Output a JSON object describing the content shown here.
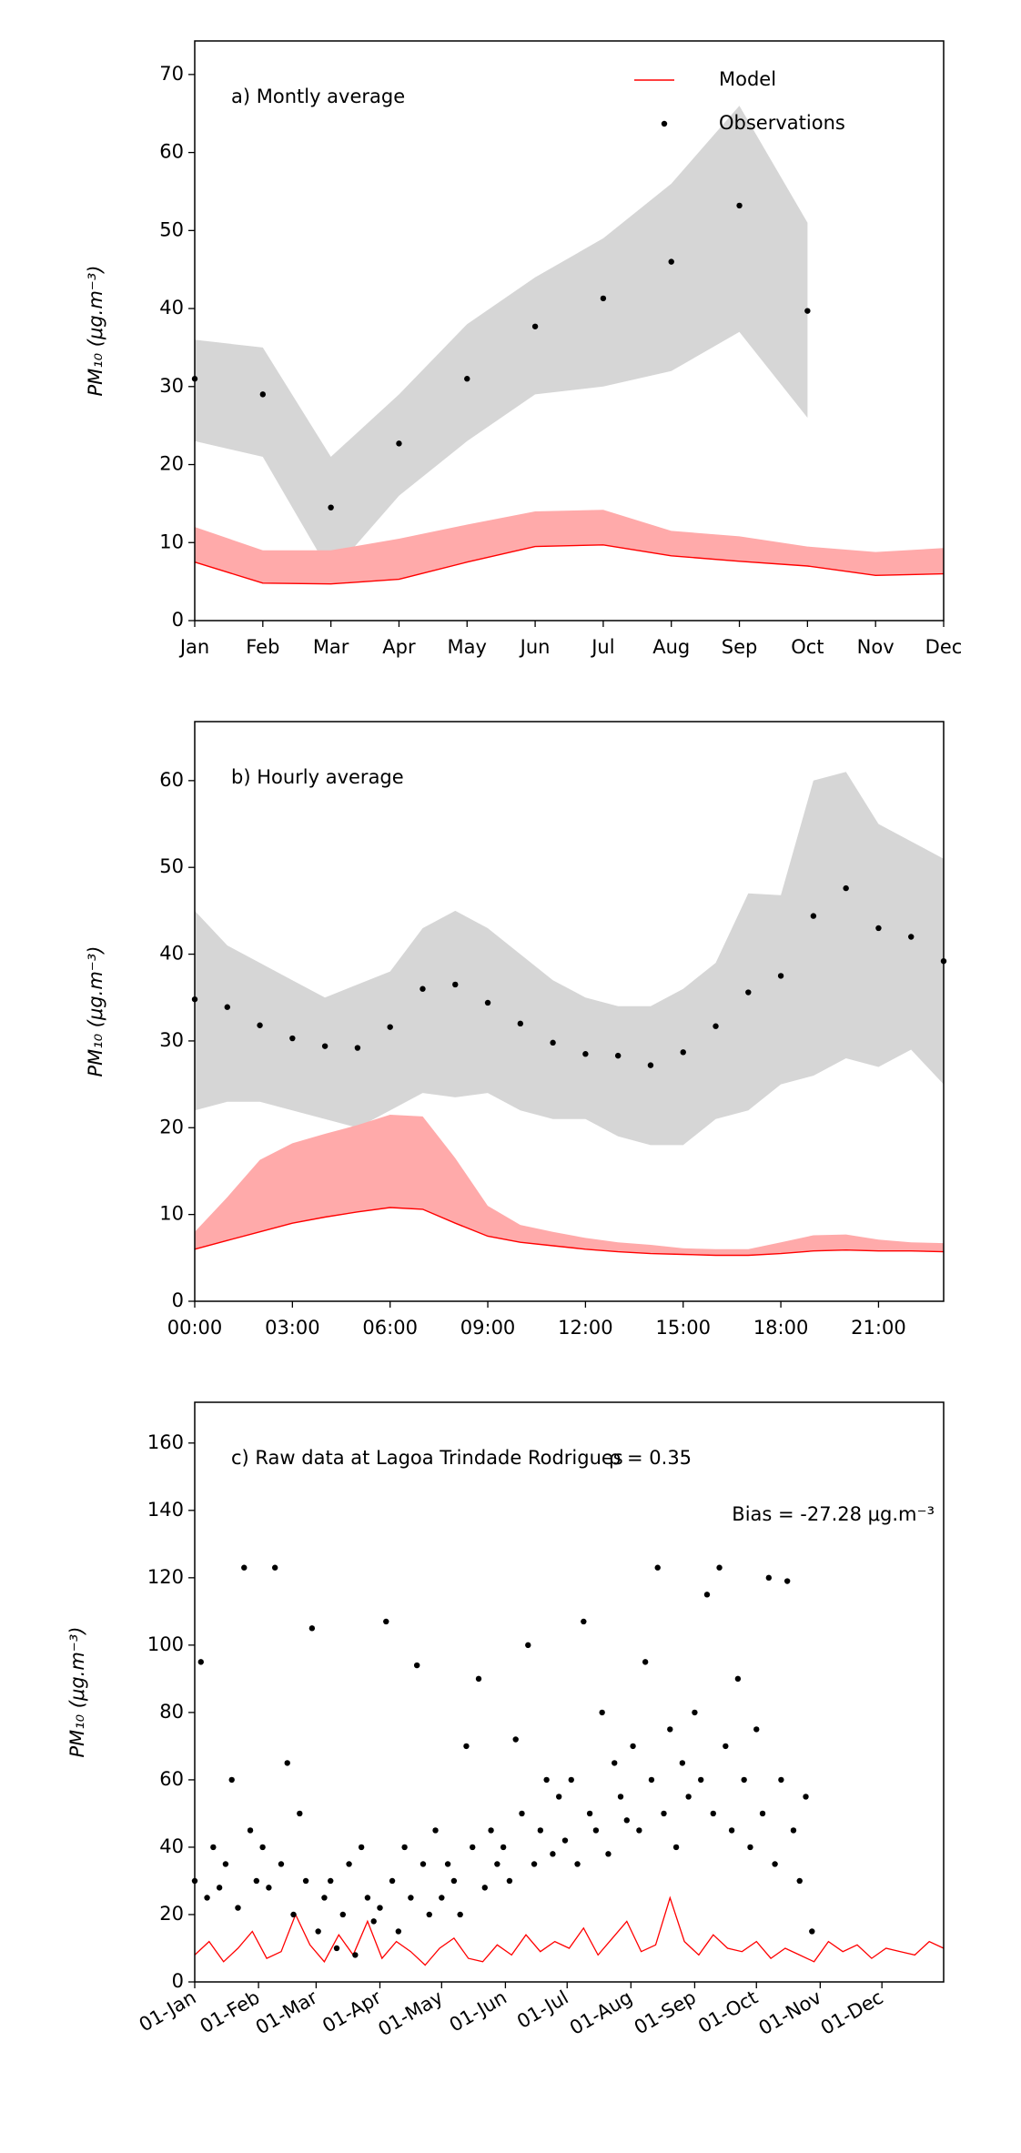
{
  "chart_data": [
    {
      "type": "line",
      "annotation": "a) Montly average",
      "ylabel": "PM₁₀ (μg.m⁻³)",
      "categories": [
        "Jan",
        "Feb",
        "Mar",
        "Apr",
        "May",
        "Jun",
        "Jul",
        "Aug",
        "Sep",
        "Oct",
        "Nov",
        "Dec"
      ],
      "ylim": [
        0,
        74.3
      ],
      "yticks": [
        0,
        10,
        20,
        30,
        40,
        50,
        60,
        70
      ],
      "legend": "upper right",
      "bands": [
        {
          "color": "#d6d6d6",
          "lower": [
            23,
            21,
            6,
            16,
            23,
            29,
            30,
            32,
            37,
            26,
            null,
            null
          ],
          "upper": [
            36,
            35,
            21,
            29,
            38,
            44,
            49,
            56,
            66,
            51,
            null,
            null
          ]
        },
        {
          "color": "#ffaaaa",
          "lower": [
            7.5,
            4.8,
            4.7,
            5.3,
            7.5,
            9.5,
            9.7,
            8.3,
            7.6,
            7.0,
            5.8,
            6.0
          ],
          "upper": [
            12,
            9,
            9,
            10.5,
            12.3,
            14,
            14.2,
            11.5,
            10.8,
            9.5,
            8.8,
            9.3
          ]
        }
      ],
      "series": [
        {
          "name": "Model",
          "style": "line",
          "color": "#ff0000",
          "values": [
            7.5,
            4.8,
            4.7,
            5.3,
            7.5,
            9.5,
            9.7,
            8.3,
            7.6,
            7.0,
            5.8,
            6.0
          ]
        },
        {
          "name": "Observations",
          "style": "markers",
          "color": "#000000",
          "values": [
            31,
            29,
            14.5,
            22.7,
            31,
            37.7,
            41.3,
            46,
            53.2,
            39.7,
            null,
            null
          ]
        }
      ]
    },
    {
      "type": "line",
      "annotation": "b) Hourly average",
      "ylabel": "PM₁₀ (μg.m⁻³)",
      "x": [
        0,
        1,
        2,
        3,
        4,
        5,
        6,
        7,
        8,
        9,
        10,
        11,
        12,
        13,
        14,
        15,
        16,
        17,
        18,
        19,
        20,
        21,
        22,
        23
      ],
      "xlim": [
        0,
        23
      ],
      "xticks": [
        {
          "value": 0,
          "label": "00:00"
        },
        {
          "value": 3,
          "label": "03:00"
        },
        {
          "value": 6,
          "label": "06:00"
        },
        {
          "value": 9,
          "label": "09:00"
        },
        {
          "value": 12,
          "label": "12:00"
        },
        {
          "value": 15,
          "label": "15:00"
        },
        {
          "value": 18,
          "label": "18:00"
        },
        {
          "value": 21,
          "label": "21:00"
        }
      ],
      "ylim": [
        0,
        66.8
      ],
      "yticks": [
        0,
        10,
        20,
        30,
        40,
        50,
        60
      ],
      "bands": [
        {
          "color": "#d6d6d6",
          "lower": [
            22,
            23,
            23,
            22,
            21,
            20,
            22,
            24,
            23.5,
            24,
            22,
            21,
            21,
            19,
            18,
            18,
            21,
            22,
            25,
            26,
            28,
            27,
            29,
            25
          ],
          "upper": [
            45,
            41,
            39,
            37,
            35,
            36.5,
            38,
            43,
            45,
            43,
            40,
            37,
            35,
            34,
            34,
            36,
            39,
            47,
            46.8,
            60,
            61,
            55,
            53,
            51
          ]
        },
        {
          "color": "#ffaaaa",
          "lower": [
            6.0,
            7.0,
            8.0,
            9.0,
            9.7,
            10.3,
            10.8,
            10.6,
            9.0,
            7.5,
            6.8,
            6.4,
            6.0,
            5.7,
            5.5,
            5.4,
            5.3,
            5.3,
            5.5,
            5.8,
            5.9,
            5.8,
            5.8,
            5.7
          ],
          "upper": [
            8,
            12,
            16.3,
            18.2,
            19.3,
            20.3,
            21.5,
            21.3,
            16.5,
            11,
            8.8,
            8,
            7.3,
            6.8,
            6.5,
            6.1,
            6,
            6,
            6.8,
            7.6,
            7.7,
            7.1,
            6.8,
            6.7
          ]
        }
      ],
      "series": [
        {
          "style": "line",
          "color": "#ff0000",
          "values": [
            6.0,
            7.0,
            8.0,
            9.0,
            9.7,
            10.3,
            10.8,
            10.6,
            9.0,
            7.5,
            6.8,
            6.4,
            6.0,
            5.7,
            5.5,
            5.4,
            5.3,
            5.3,
            5.5,
            5.8,
            5.9,
            5.8,
            5.8,
            5.7
          ]
        },
        {
          "style": "markers",
          "color": "#000000",
          "values": [
            34.8,
            33.9,
            31.8,
            30.3,
            29.4,
            29.2,
            31.6,
            36,
            36.5,
            34.4,
            32,
            29.8,
            28.5,
            28.3,
            27.2,
            28.7,
            31.7,
            35.6,
            37.5,
            44.4,
            47.6,
            43,
            42,
            39.2
          ]
        }
      ]
    },
    {
      "type": "line",
      "annotation": "c) Raw data at Lagoa Trindade Rodrigues",
      "correlation": "ρ = 0.35",
      "bias": "Bias = -27.28 μg.m⁻³",
      "ylabel": "PM₁₀ (μg.m⁻³)",
      "xlim": [
        0,
        364
      ],
      "xticks": [
        {
          "value": 0,
          "label": "01-Jan"
        },
        {
          "value": 31,
          "label": "01-Feb"
        },
        {
          "value": 59,
          "label": "01-Mar"
        },
        {
          "value": 90,
          "label": "01-Apr"
        },
        {
          "value": 120,
          "label": "01-May"
        },
        {
          "value": 151,
          "label": "01-Jun"
        },
        {
          "value": 181,
          "label": "01-Jul"
        },
        {
          "value": 212,
          "label": "01-Aug"
        },
        {
          "value": 243,
          "label": "01-Sep"
        },
        {
          "value": 273,
          "label": "01-Oct"
        },
        {
          "value": 304,
          "label": "01-Nov"
        },
        {
          "value": 334,
          "label": "01-Dec"
        }
      ],
      "ylim": [
        0,
        172.1
      ],
      "yticks": [
        0,
        20,
        40,
        60,
        80,
        100,
        120,
        140,
        160
      ],
      "series": [
        {
          "style": "line",
          "color": "#ff0000",
          "x": [
            0,
            7,
            14,
            21,
            28,
            35,
            42,
            49,
            56,
            63,
            70,
            77,
            84,
            91,
            98,
            105,
            112,
            119,
            126,
            133,
            140,
            147,
            154,
            161,
            168,
            175,
            182,
            189,
            196,
            203,
            210,
            217,
            224,
            231,
            238,
            245,
            252,
            259,
            266,
            273,
            280,
            287,
            294,
            301,
            308,
            315,
            322,
            329,
            336,
            343,
            350,
            357,
            364
          ],
          "values": [
            8,
            12,
            6,
            10,
            15,
            7,
            9,
            20,
            11,
            6,
            14,
            8,
            18,
            7,
            12,
            9,
            5,
            10,
            13,
            7,
            6,
            11,
            8,
            14,
            9,
            12,
            10,
            16,
            8,
            13,
            18,
            9,
            11,
            25,
            12,
            8,
            14,
            10,
            9,
            12,
            7,
            10,
            8,
            6,
            12,
            9,
            11,
            7,
            10,
            9,
            8,
            12,
            10
          ]
        },
        {
          "style": "markers",
          "color": "#000000",
          "x": [
            0,
            3,
            6,
            9,
            12,
            15,
            18,
            21,
            24,
            27,
            30,
            33,
            36,
            39,
            42,
            45,
            48,
            51,
            54,
            57,
            60,
            63,
            66,
            69,
            72,
            75,
            78,
            81,
            84,
            87,
            90,
            93,
            96,
            99,
            102,
            105,
            108,
            111,
            114,
            117,
            120,
            123,
            126,
            129,
            132,
            135,
            138,
            141,
            144,
            147,
            150,
            153,
            156,
            159,
            162,
            165,
            168,
            171,
            174,
            177,
            180,
            183,
            186,
            189,
            192,
            195,
            198,
            201,
            204,
            207,
            210,
            213,
            216,
            219,
            222,
            225,
            228,
            231,
            234,
            237,
            240,
            243,
            246,
            249,
            252,
            255,
            258,
            261,
            264,
            267,
            270,
            273,
            276,
            279,
            282,
            285,
            288,
            291,
            294,
            297,
            300
          ],
          "values": [
            30,
            95,
            25,
            40,
            28,
            35,
            60,
            22,
            123,
            45,
            30,
            40,
            28,
            123,
            35,
            65,
            20,
            50,
            30,
            105,
            15,
            25,
            30,
            10,
            20,
            35,
            8,
            40,
            25,
            18,
            22,
            107,
            30,
            15,
            40,
            25,
            94,
            35,
            20,
            45,
            25,
            35,
            30,
            20,
            70,
            40,
            90,
            28,
            45,
            35,
            40,
            30,
            72,
            50,
            100,
            35,
            45,
            60,
            38,
            55,
            42,
            60,
            35,
            107,
            50,
            45,
            80,
            38,
            65,
            55,
            48,
            70,
            45,
            95,
            60,
            123,
            50,
            75,
            40,
            65,
            55,
            80,
            60,
            115,
            50,
            123,
            70,
            45,
            90,
            60,
            40,
            75,
            50,
            120,
            35,
            60,
            119,
            45,
            30,
            55,
            15
          ]
        }
      ]
    }
  ]
}
